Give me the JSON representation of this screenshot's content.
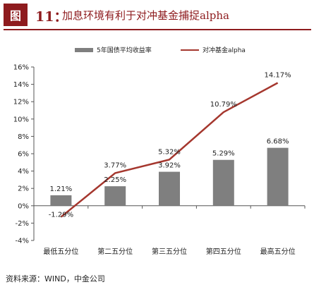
{
  "header": {
    "fig_label": "图",
    "fig_number": "11：",
    "title": "加息环境有利于对冲基金捕捉alpha"
  },
  "legend": {
    "bar_label": "5年国债平均收益率",
    "line_label": "对冲基金alpha"
  },
  "source": "资料来源：WIND，中金公司",
  "colors": {
    "bar": "#7f7f7f",
    "line": "#a5372e",
    "accent": "#8e1b1e"
  },
  "chart_data": {
    "type": "bar",
    "categories": [
      "最低五分位",
      "第二五分位",
      "第三五分位",
      "第四五分位",
      "最高五分位"
    ],
    "series": [
      {
        "name": "5年国债平均收益率",
        "type": "bar",
        "values": [
          1.21,
          2.25,
          3.92,
          5.29,
          6.68
        ],
        "labels": [
          "1.21%",
          "2.25%",
          "3.92%",
          "5.29%",
          "6.68%"
        ]
      },
      {
        "name": "对冲基金alpha",
        "type": "line",
        "values": [
          -1.29,
          3.77,
          5.32,
          10.79,
          14.17
        ],
        "labels": [
          "-1.29%",
          "3.77%",
          "5.32%",
          "10.79%",
          "14.17%"
        ]
      }
    ],
    "ylim": [
      -4,
      16
    ],
    "yticks": [
      -4,
      -2,
      0,
      2,
      4,
      6,
      8,
      10,
      12,
      14,
      16
    ],
    "ytick_labels": [
      "-4%",
      "-2%",
      "0%",
      "2%",
      "4%",
      "6%",
      "8%",
      "10%",
      "12%",
      "14%",
      "16%"
    ],
    "grid": false,
    "legend_position": "top"
  }
}
